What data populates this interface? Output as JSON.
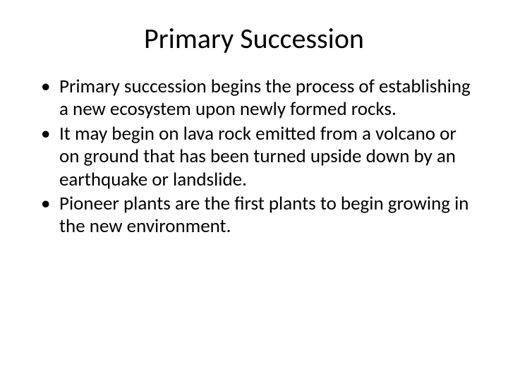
{
  "slide": {
    "title": "Primary Succession",
    "bullets": [
      "Primary succession begins the process of establishing a new ecosystem upon newly formed rocks.",
      "It may begin on lava rock emitted from a volcano or on ground that has been turned upside down by an earthquake or landslide.",
      "Pioneer plants are the first plants to begin growing in the new environment."
    ],
    "title_fontsize": 40,
    "body_fontsize": 27,
    "text_color": "#000000",
    "background_color": "#ffffff",
    "font_family": "Calibri"
  }
}
